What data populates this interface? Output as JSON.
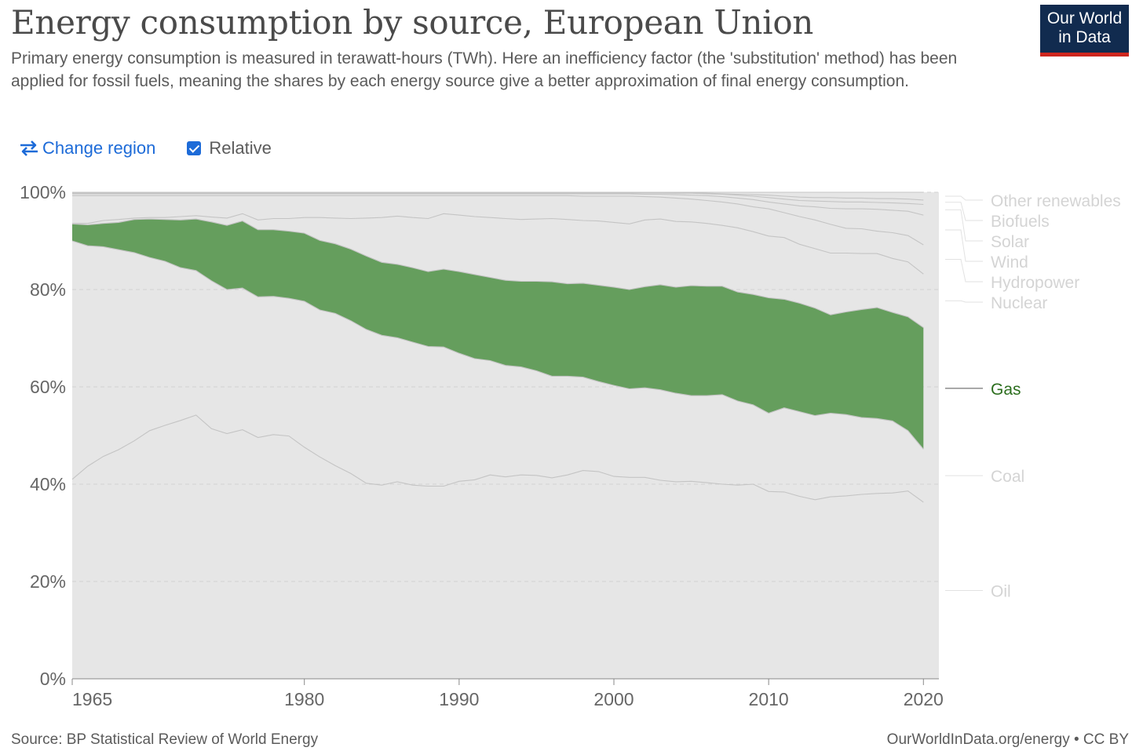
{
  "header": {
    "title": "Energy consumption by source, European Union",
    "subtitle": "Primary energy consumption is measured in terawatt-hours (TWh). Here an inefficiency factor (the 'substitution' method) has been applied for fossil fuels, meaning the shares by each energy source give a better approximation of final energy consumption.",
    "logo_line1": "Our World",
    "logo_line2": "in Data"
  },
  "controls": {
    "change_region_label": "Change region",
    "relative_label": "Relative",
    "relative_checked": true
  },
  "footer": {
    "source": "Source: BP Statistical Review of World Energy",
    "credit": "OurWorldInData.org/energy • CC BY"
  },
  "colors": {
    "accent": "#1d6bd8",
    "gas_fill": "#659e5d",
    "gas_label": "#2c6e1e",
    "plot_bg": "#e6e6e6",
    "logo_bg": "#112b4f",
    "logo_bar": "#ce261e"
  },
  "chart_data": {
    "type": "area",
    "stacked": true,
    "relative": true,
    "xlim": [
      1965,
      2021
    ],
    "ylim": [
      0,
      100
    ],
    "x_ticks": [
      1965,
      1980,
      1990,
      2000,
      2010,
      2020
    ],
    "y_ticks": [
      "0%",
      "20%",
      "40%",
      "60%",
      "80%",
      "100%"
    ],
    "highlighted_series": "Gas",
    "x": [
      1965,
      1966,
      1967,
      1968,
      1969,
      1970,
      1971,
      1972,
      1973,
      1974,
      1975,
      1976,
      1977,
      1978,
      1979,
      1980,
      1981,
      1982,
      1983,
      1984,
      1985,
      1986,
      1987,
      1988,
      1989,
      1990,
      1991,
      1992,
      1993,
      1994,
      1995,
      1996,
      1997,
      1998,
      1999,
      2000,
      2001,
      2002,
      2003,
      2004,
      2005,
      2006,
      2007,
      2008,
      2009,
      2010,
      2011,
      2012,
      2013,
      2014,
      2015,
      2016,
      2017,
      2018,
      2019,
      2020,
      2021
    ],
    "cumulative": [
      {
        "name": "Oil",
        "values": [
          41.0,
          43.7,
          45.7,
          47.1,
          48.9,
          51.0,
          52.1,
          53.1,
          54.2,
          51.4,
          50.4,
          51.2,
          49.6,
          50.2,
          49.9,
          47.6,
          45.6,
          43.8,
          42.2,
          40.2,
          39.8,
          40.5,
          39.8,
          39.6,
          39.6,
          40.6,
          40.9,
          41.9,
          41.5,
          41.9,
          41.8,
          41.3,
          41.9,
          42.8,
          42.6,
          41.6,
          41.4,
          41.4,
          40.8,
          40.5,
          40.6,
          40.3,
          40.0,
          39.8,
          40.0,
          38.5,
          38.4,
          37.5,
          36.8,
          37.4,
          37.6,
          37.9,
          38.1,
          38.2,
          38.6,
          36.3,
          null
        ]
      },
      {
        "name": "Coal",
        "values": [
          90.0,
          89.0,
          88.8,
          88.2,
          87.6,
          86.6,
          85.8,
          84.5,
          83.9,
          81.8,
          80.0,
          80.3,
          78.5,
          78.6,
          78.2,
          77.6,
          75.8,
          75.1,
          73.6,
          71.8,
          70.6,
          70.1,
          69.2,
          68.3,
          68.2,
          66.9,
          65.8,
          65.4,
          64.4,
          64.1,
          63.3,
          62.2,
          62.2,
          62.0,
          61.1,
          60.3,
          59.6,
          59.8,
          59.4,
          58.7,
          58.2,
          58.2,
          58.4,
          57.1,
          56.3,
          54.6,
          55.7,
          54.9,
          54.1,
          54.6,
          54.3,
          53.7,
          53.5,
          53.0,
          51.0,
          47.2,
          null
        ]
      },
      {
        "name": "Gas",
        "values": [
          93.5,
          93.3,
          93.6,
          93.8,
          94.4,
          94.5,
          94.4,
          94.3,
          94.5,
          93.9,
          93.2,
          94.1,
          92.3,
          92.3,
          92.0,
          91.6,
          90.1,
          89.4,
          88.3,
          86.9,
          85.6,
          85.2,
          84.5,
          83.7,
          84.2,
          83.7,
          83.1,
          82.5,
          81.9,
          81.7,
          81.7,
          81.6,
          81.2,
          81.3,
          80.9,
          80.5,
          80.0,
          80.6,
          81.0,
          80.5,
          80.8,
          80.7,
          80.7,
          79.5,
          79.0,
          78.3,
          78.0,
          77.2,
          76.2,
          74.8,
          75.4,
          75.9,
          76.3,
          75.3,
          74.4,
          72.2,
          null
        ]
      },
      {
        "name": "Nuclear",
        "values": [
          93.6,
          93.6,
          94.2,
          94.4,
          94.7,
          94.8,
          94.8,
          95.0,
          95.2,
          94.9,
          94.7,
          95.6,
          94.3,
          94.6,
          94.6,
          94.8,
          94.8,
          94.7,
          94.6,
          94.7,
          94.8,
          95.1,
          94.8,
          94.6,
          95.6,
          95.3,
          95.0,
          94.8,
          94.6,
          94.4,
          94.5,
          94.6,
          94.4,
          94.2,
          94.1,
          93.8,
          93.5,
          94.3,
          94.5,
          94.0,
          93.9,
          93.6,
          93.2,
          92.7,
          91.9,
          91.0,
          90.7,
          89.3,
          88.4,
          87.5,
          87.5,
          87.4,
          87.4,
          86.4,
          85.7,
          83.2,
          null
        ]
      },
      {
        "name": "Hydropower",
        "values": [
          99.3,
          99.3,
          99.3,
          99.3,
          99.3,
          99.3,
          99.3,
          99.3,
          99.3,
          99.3,
          99.3,
          99.3,
          99.3,
          99.3,
          99.3,
          99.3,
          99.3,
          99.3,
          99.3,
          99.3,
          99.3,
          99.3,
          99.3,
          99.3,
          99.3,
          99.3,
          99.3,
          99.3,
          99.3,
          99.3,
          99.3,
          99.3,
          99.3,
          99.2,
          99.2,
          99.2,
          99.2,
          99.1,
          99.0,
          98.8,
          98.6,
          98.3,
          98.0,
          97.6,
          97.0,
          96.6,
          95.8,
          95.0,
          94.3,
          93.4,
          92.6,
          92.5,
          92.0,
          91.7,
          91.1,
          89.2,
          null
        ]
      },
      {
        "name": "Wind",
        "values": [
          99.7,
          99.7,
          99.7,
          99.7,
          99.7,
          99.7,
          99.7,
          99.7,
          99.7,
          99.7,
          99.7,
          99.7,
          99.7,
          99.7,
          99.7,
          99.7,
          99.7,
          99.7,
          99.7,
          99.7,
          99.7,
          99.7,
          99.7,
          99.7,
          99.7,
          99.7,
          99.7,
          99.7,
          99.7,
          99.7,
          99.7,
          99.7,
          99.7,
          99.7,
          99.7,
          99.7,
          99.7,
          99.6,
          99.6,
          99.5,
          99.4,
          99.3,
          99.1,
          98.8,
          98.5,
          98.0,
          97.6,
          97.2,
          97.0,
          96.7,
          96.6,
          96.6,
          96.5,
          96.3,
          96.1,
          95.3,
          null
        ]
      },
      {
        "name": "Solar",
        "values": [
          99.85,
          99.85,
          99.85,
          99.85,
          99.85,
          99.85,
          99.85,
          99.85,
          99.85,
          99.85,
          99.85,
          99.85,
          99.85,
          99.85,
          99.85,
          99.85,
          99.85,
          99.85,
          99.85,
          99.85,
          99.85,
          99.85,
          99.85,
          99.85,
          99.85,
          99.85,
          99.85,
          99.85,
          99.85,
          99.85,
          99.85,
          99.85,
          99.85,
          99.85,
          99.85,
          99.85,
          99.85,
          99.85,
          99.85,
          99.8,
          99.8,
          99.7,
          99.6,
          99.4,
          99.2,
          98.9,
          98.6,
          98.3,
          98.2,
          98.1,
          98.0,
          98.0,
          97.9,
          97.8,
          97.7,
          97.5,
          null
        ]
      },
      {
        "name": "Biofuels",
        "values": [
          99.95,
          99.95,
          99.95,
          99.95,
          99.95,
          99.95,
          99.95,
          99.95,
          99.95,
          99.95,
          99.95,
          99.95,
          99.95,
          99.95,
          99.95,
          99.95,
          99.95,
          99.95,
          99.95,
          99.95,
          99.95,
          99.95,
          99.95,
          99.95,
          99.95,
          99.95,
          99.95,
          99.95,
          99.95,
          99.95,
          99.95,
          99.95,
          99.95,
          99.95,
          99.95,
          99.95,
          99.9,
          99.9,
          99.9,
          99.9,
          99.9,
          99.8,
          99.7,
          99.6,
          99.5,
          99.4,
          99.2,
          99.0,
          98.9,
          98.9,
          98.8,
          98.8,
          98.7,
          98.7,
          98.6,
          98.4,
          null
        ]
      },
      {
        "name": "Other renewables",
        "values": [
          100,
          100,
          100,
          100,
          100,
          100,
          100,
          100,
          100,
          100,
          100,
          100,
          100,
          100,
          100,
          100,
          100,
          100,
          100,
          100,
          100,
          100,
          100,
          100,
          100,
          100,
          100,
          100,
          100,
          100,
          100,
          100,
          100,
          100,
          100,
          100,
          100,
          100,
          100,
          100,
          100,
          100,
          100,
          100,
          100,
          100,
          100,
          100,
          100,
          100,
          100,
          100,
          100,
          100,
          100,
          100,
          null
        ]
      }
    ],
    "legend": [
      {
        "name": "Other renewables",
        "highlighted": false
      },
      {
        "name": "Biofuels",
        "highlighted": false
      },
      {
        "name": "Solar",
        "highlighted": false
      },
      {
        "name": "Wind",
        "highlighted": false
      },
      {
        "name": "Hydropower",
        "highlighted": false
      },
      {
        "name": "Nuclear",
        "highlighted": false
      },
      {
        "name": "Gas",
        "highlighted": true
      },
      {
        "name": "Coal",
        "highlighted": false
      },
      {
        "name": "Oil",
        "highlighted": false
      }
    ]
  }
}
